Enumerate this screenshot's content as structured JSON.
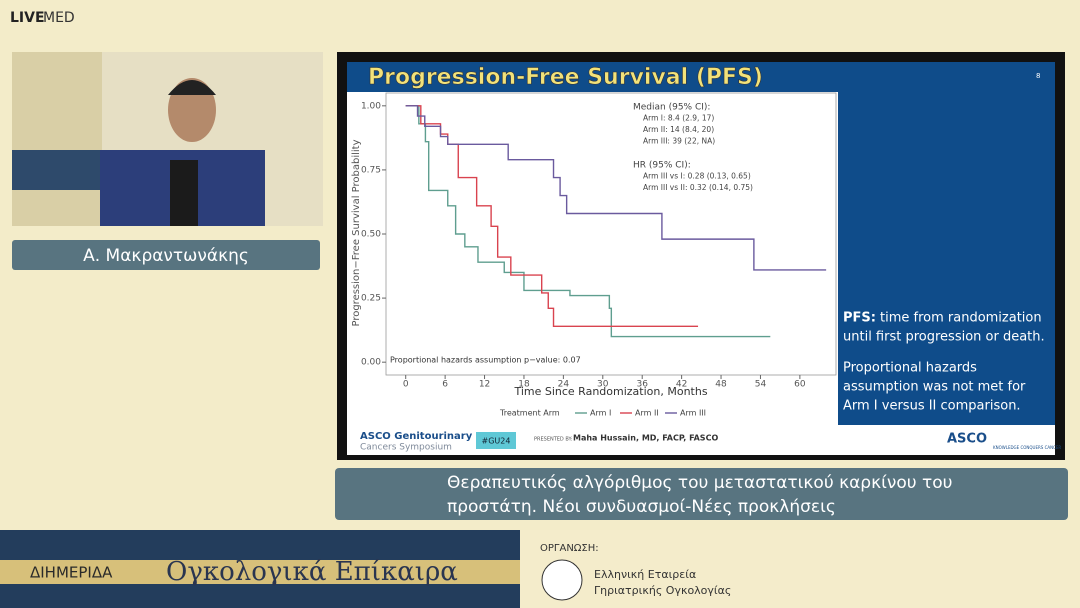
{
  "header": {
    "logo_live": "LIVE",
    "logo_med": "MED"
  },
  "speaker": {
    "name": "Α. Μακραντωνάκης"
  },
  "slide": {
    "title": "Progression-Free Survival (PFS)",
    "number": "8",
    "chart": {
      "type": "line",
      "y_label": "Progression−Free Survival Probability",
      "x_label": "Time Since Randomization, Months",
      "xlim": [
        -3,
        65.5
      ],
      "ylim": [
        -0.05,
        1.05
      ],
      "xticks": [
        0,
        6,
        12,
        18,
        24,
        30,
        36,
        42,
        48,
        54,
        60
      ],
      "yticks": [
        {
          "value": 0,
          "label": "0.00"
        },
        {
          "value": 0.25,
          "label": "0.25"
        },
        {
          "value": 0.5,
          "label": "0.50"
        },
        {
          "value": 0.75,
          "label": "0.75"
        },
        {
          "value": 1,
          "label": "1.00"
        }
      ],
      "legend_title": "Treatment Arm",
      "series": [
        {
          "name": "Arm I",
          "color": "#5f9e8f",
          "x": [
            0,
            2,
            3,
            3.5,
            6.4,
            7.6,
            9,
            11,
            15,
            18,
            25,
            31,
            31.3,
            55.5
          ],
          "values": [
            1,
            0.93,
            0.86,
            0.67,
            0.61,
            0.5,
            0.45,
            0.39,
            0.35,
            0.28,
            0.26,
            0.21,
            0.1,
            0.1
          ]
        },
        {
          "name": "Arm II",
          "color": "#d9434f",
          "x": [
            0,
            2.3,
            5.3,
            6.4,
            8,
            10.8,
            13,
            14,
            16,
            20.7,
            21.7,
            22.5,
            44.5
          ],
          "values": [
            1,
            0.93,
            0.89,
            0.85,
            0.72,
            0.61,
            0.53,
            0.41,
            0.34,
            0.27,
            0.21,
            0.14,
            0.14
          ]
        },
        {
          "name": "Arm III",
          "color": "#6a5a9e",
          "x": [
            0,
            1.8,
            2.9,
            5.3,
            6.4,
            15.6,
            22.5,
            23.5,
            24.5,
            26,
            39,
            53,
            64
          ],
          "values": [
            1,
            0.96,
            0.92,
            0.88,
            0.85,
            0.79,
            0.72,
            0.65,
            0.58,
            0.58,
            0.48,
            0.36,
            0.36
          ]
        }
      ],
      "annotations": [
        "Median (95% CI):",
        "Arm I:   8.4 (2.9, 17)",
        "Arm II:  14 (8.4, 20)",
        "Arm III: 39 (22, NA)",
        "HR (95% CI):",
        "Arm III vs I:  0.28 (0.13, 0.65)",
        "Arm III vs II: 0.32 (0.14, 0.75)"
      ],
      "note": "Proportional hazards assumption p−value: 0.07"
    },
    "side": {
      "pfs_label": "PFS:",
      "pfs_lines": [
        "time from randomization",
        "until first progression or death."
      ],
      "ph_lines": [
        "Proportional hazards",
        "assumption was not met for",
        "Arm I versus II comparison."
      ]
    },
    "footer": {
      "asco_gu": "ASCO Genitourinary",
      "asco_gu2": "Cancers Symposium",
      "hashtag": "#GU24",
      "presented": "PRESENTED BY:",
      "presenter": "Maha Hussain, MD, FACP, FASCO",
      "asco": "ASCO",
      "asco_tag": "KNOWLEDGE CONQUERS CANCER"
    }
  },
  "caption": [
    "Θεραπευτικός αλγόριθμος του μεταστατικού καρκίνου του",
    "προστάτη. Νέοι συνδυασμοί-Νέες προκλήσεις"
  ],
  "banner": {
    "event": "ΔΙΗΜΕΡΙΔΑ",
    "title": "Ογκολογικά Επίκαιρα",
    "org_label": "ΟΡΓΑΝΩΣΗ:",
    "org_lines": [
      "Ελληνική Εταιρεία",
      "Γηριατρικής Ογκολογίας"
    ]
  }
}
